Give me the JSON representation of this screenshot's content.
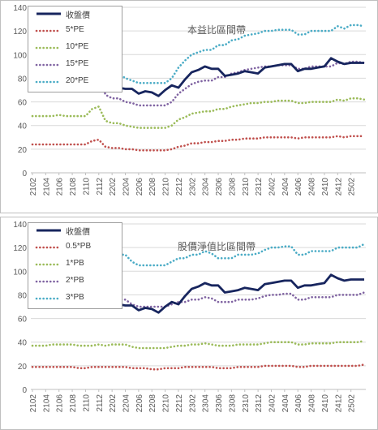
{
  "chart_data": [
    {
      "type": "line",
      "title": "本益比區間帶",
      "ylim": [
        0,
        140
      ],
      "yticks": [
        "0",
        "20",
        "40",
        "60",
        "80",
        "100",
        "120",
        "140"
      ],
      "xtick_labels": [
        "2102",
        "2104",
        "2106",
        "2108",
        "2110",
        "2112",
        "2202",
        "2204",
        "2206",
        "2208",
        "2210",
        "2212",
        "2302",
        "2304",
        "2306",
        "2308",
        "2310",
        "2312",
        "2402",
        "2404",
        "2406",
        "2408",
        "2410",
        "2412",
        "2502"
      ],
      "grid": true,
      "legend_position": "top-left",
      "series": [
        {
          "name": "收盤價",
          "color": "#17255e",
          "style": "solid",
          "values": [
            70,
            73,
            75,
            73,
            72,
            73,
            74,
            71,
            72,
            76,
            76,
            73,
            72,
            72,
            71,
            71,
            67,
            69,
            68,
            65,
            70,
            74,
            72,
            79,
            85,
            87,
            90,
            88,
            88,
            82,
            83,
            84,
            86,
            85,
            84,
            89,
            90,
            91,
            92,
            92,
            86,
            88,
            88,
            89,
            90,
            97,
            94,
            92,
            93,
            93,
            93
          ]
        },
        {
          "name": "5*PE",
          "color": "#c0504d",
          "style": "dotted",
          "values": [
            24,
            24,
            24,
            24,
            24,
            24,
            24,
            24,
            24,
            27,
            28,
            22,
            21,
            21,
            20,
            20,
            19,
            19,
            19,
            19,
            19,
            20,
            22,
            23,
            25,
            25,
            26,
            26,
            27,
            27,
            28,
            28,
            29,
            29,
            29,
            30,
            30,
            30,
            30,
            30,
            29,
            30,
            30,
            30,
            30,
            30,
            31,
            30,
            31,
            31,
            31
          ]
        },
        {
          "name": "10*PE",
          "color": "#9bbb59",
          "style": "dotted",
          "values": [
            48,
            48,
            48,
            48,
            49,
            48,
            48,
            48,
            48,
            54,
            56,
            44,
            42,
            42,
            40,
            39,
            38,
            38,
            38,
            38,
            38,
            40,
            45,
            47,
            50,
            51,
            52,
            52,
            54,
            54,
            56,
            57,
            58,
            59,
            59,
            60,
            60,
            61,
            61,
            61,
            59,
            59,
            60,
            60,
            60,
            60,
            62,
            61,
            63,
            63,
            62
          ]
        },
        {
          "name": "15*PE",
          "color": "#8064a2",
          "style": "dotted",
          "values": [
            72,
            72,
            72,
            72,
            73,
            72,
            72,
            72,
            72,
            81,
            84,
            66,
            63,
            63,
            60,
            59,
            57,
            57,
            57,
            57,
            57,
            60,
            67,
            71,
            75,
            77,
            78,
            78,
            81,
            81,
            84,
            85,
            87,
            88,
            89,
            90,
            90,
            91,
            91,
            91,
            88,
            88,
            90,
            90,
            90,
            90,
            93,
            92,
            94,
            94,
            93
          ]
        },
        {
          "name": "20*PE",
          "color": "#4bacc6",
          "style": "dotted",
          "values": [
            96,
            96,
            96,
            96,
            97,
            96,
            96,
            96,
            96,
            108,
            111,
            88,
            84,
            84,
            80,
            78,
            76,
            76,
            76,
            76,
            76,
            80,
            89,
            95,
            100,
            102,
            104,
            104,
            108,
            108,
            112,
            113,
            116,
            117,
            118,
            120,
            120,
            121,
            121,
            121,
            117,
            117,
            120,
            120,
            120,
            120,
            124,
            122,
            125,
            125,
            124
          ]
        }
      ]
    },
    {
      "type": "line",
      "title": "股價淨值比區間帶",
      "ylim": [
        0,
        140
      ],
      "yticks": [
        "0",
        "20",
        "40",
        "60",
        "80",
        "100",
        "120",
        "140"
      ],
      "xtick_labels": [
        "2102",
        "2104",
        "2106",
        "2108",
        "2110",
        "2112",
        "2202",
        "2204",
        "2206",
        "2208",
        "2210",
        "2212",
        "2302",
        "2304",
        "2306",
        "2308",
        "2310",
        "2312",
        "2402",
        "2404",
        "2406",
        "2408",
        "2410",
        "2412",
        "2502"
      ],
      "grid": true,
      "legend_position": "top-left",
      "series": [
        {
          "name": "收盤價",
          "color": "#17255e",
          "style": "solid",
          "values": [
            70,
            73,
            75,
            73,
            72,
            73,
            74,
            71,
            72,
            76,
            76,
            73,
            72,
            72,
            71,
            71,
            67,
            69,
            68,
            65,
            70,
            74,
            72,
            79,
            85,
            87,
            90,
            88,
            88,
            82,
            83,
            84,
            86,
            85,
            84,
            89,
            90,
            91,
            92,
            92,
            86,
            88,
            88,
            89,
            90,
            97,
            94,
            92,
            93,
            93,
            93
          ]
        },
        {
          "name": "0.5*PB",
          "color": "#c0504d",
          "style": "dotted",
          "values": [
            19,
            19,
            19,
            19,
            19,
            19,
            19,
            18,
            18,
            19,
            19,
            19,
            19,
            19,
            19,
            18,
            18,
            18,
            17,
            17,
            18,
            18,
            18,
            19,
            19,
            19,
            19,
            19,
            18,
            18,
            18,
            19,
            19,
            19,
            19,
            20,
            20,
            20,
            20,
            20,
            19,
            19,
            20,
            20,
            20,
            20,
            20,
            20,
            20,
            20,
            21
          ]
        },
        {
          "name": "1*PB",
          "color": "#9bbb59",
          "style": "dotted",
          "values": [
            37,
            37,
            37,
            38,
            38,
            38,
            38,
            37,
            37,
            37,
            38,
            37,
            38,
            38,
            38,
            36,
            35,
            35,
            35,
            35,
            35,
            36,
            37,
            37,
            38,
            38,
            39,
            38,
            37,
            37,
            37,
            38,
            38,
            38,
            38,
            39,
            40,
            40,
            40,
            40,
            38,
            38,
            39,
            39,
            39,
            39,
            40,
            40,
            40,
            40,
            41
          ]
        },
        {
          "name": "2*PB",
          "color": "#8064a2",
          "style": "dotted",
          "values": [
            74,
            74,
            75,
            76,
            76,
            75,
            75,
            74,
            74,
            74,
            76,
            74,
            76,
            76,
            76,
            72,
            70,
            70,
            70,
            70,
            70,
            72,
            74,
            74,
            76,
            76,
            78,
            77,
            74,
            74,
            74,
            76,
            76,
            76,
            77,
            79,
            80,
            80,
            81,
            81,
            76,
            76,
            78,
            78,
            78,
            78,
            80,
            80,
            80,
            80,
            82
          ]
        },
        {
          "name": "3*PB",
          "color": "#4bacc6",
          "style": "dotted",
          "values": [
            111,
            111,
            113,
            114,
            114,
            113,
            113,
            111,
            111,
            111,
            114,
            111,
            114,
            114,
            114,
            108,
            105,
            105,
            105,
            105,
            105,
            108,
            111,
            111,
            114,
            114,
            117,
            115,
            111,
            111,
            111,
            114,
            114,
            114,
            115,
            118,
            120,
            120,
            121,
            121,
            114,
            114,
            117,
            117,
            117,
            117,
            120,
            120,
            120,
            120,
            123
          ]
        }
      ]
    }
  ]
}
